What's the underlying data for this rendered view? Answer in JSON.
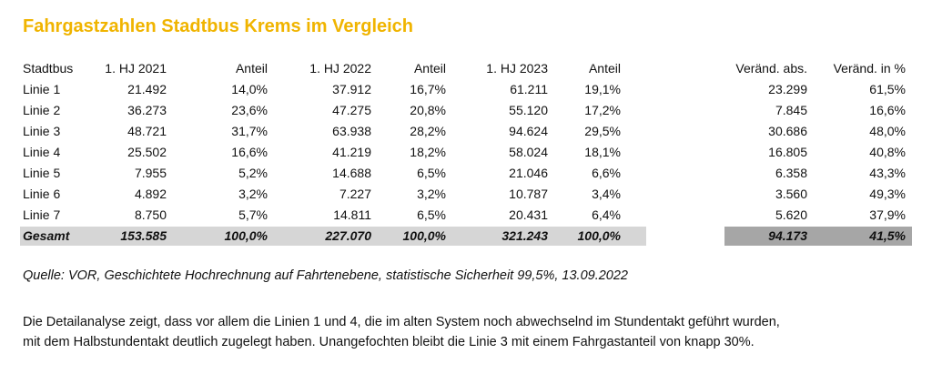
{
  "title": "Fahrgastzahlen Stadtbus Krems im Vergleich",
  "table": {
    "headers": [
      "Stadtbus",
      "1. HJ 2021",
      "Anteil",
      "1. HJ 2022",
      "Anteil",
      "1. HJ 2023",
      "Anteil",
      "Veränd. abs.",
      "Veränd. in %"
    ],
    "rows": [
      [
        "Linie 1",
        "21.492",
        "14,0%",
        "37.912",
        "16,7%",
        "61.211",
        "19,1%",
        "23.299",
        "61,5%"
      ],
      [
        "Linie 2",
        "36.273",
        "23,6%",
        "47.275",
        "20,8%",
        "55.120",
        "17,2%",
        "7.845",
        "16,6%"
      ],
      [
        "Linie 3",
        "48.721",
        "31,7%",
        "63.938",
        "28,2%",
        "94.624",
        "29,5%",
        "30.686",
        "48,0%"
      ],
      [
        "Linie 4",
        "25.502",
        "16,6%",
        "41.219",
        "18,2%",
        "58.024",
        "18,1%",
        "16.805",
        "40,8%"
      ],
      [
        "Linie 5",
        "7.955",
        "5,2%",
        "14.688",
        "6,5%",
        "21.046",
        "6,6%",
        "6.358",
        "43,3%"
      ],
      [
        "Linie 6",
        "4.892",
        "3,2%",
        "7.227",
        "3,2%",
        "10.787",
        "3,4%",
        "3.560",
        "49,3%"
      ],
      [
        "Linie 7",
        "8.750",
        "5,7%",
        "14.811",
        "6,5%",
        "20.431",
        "6,4%",
        "5.620",
        "37,9%"
      ]
    ],
    "total": [
      "Gesamt",
      "153.585",
      "100,0%",
      "227.070",
      "100,0%",
      "321.243",
      "100,0%",
      "94.173",
      "41,5%"
    ]
  },
  "source": "Quelle: VOR, Geschichtete Hochrechnung auf Fahrtenebene, statistische Sicherheit 99,5%, 13.09.2022",
  "paragraph": [
    "Die Detailanalyse zeigt, dass vor allem die Linien 1 und 4, die im alten System noch abwechselnd im Stundentakt geführt wurden,",
    "mit dem Halbstundentakt deutlich zugelegt haben. Unangefochten bleibt die Linie 3 mit einem Fahrgastanteil von knapp 30%."
  ],
  "colors": {
    "title": "#f0b400",
    "total_row_left": "#d6d6d6",
    "total_row_right": "#a6a6a6"
  }
}
